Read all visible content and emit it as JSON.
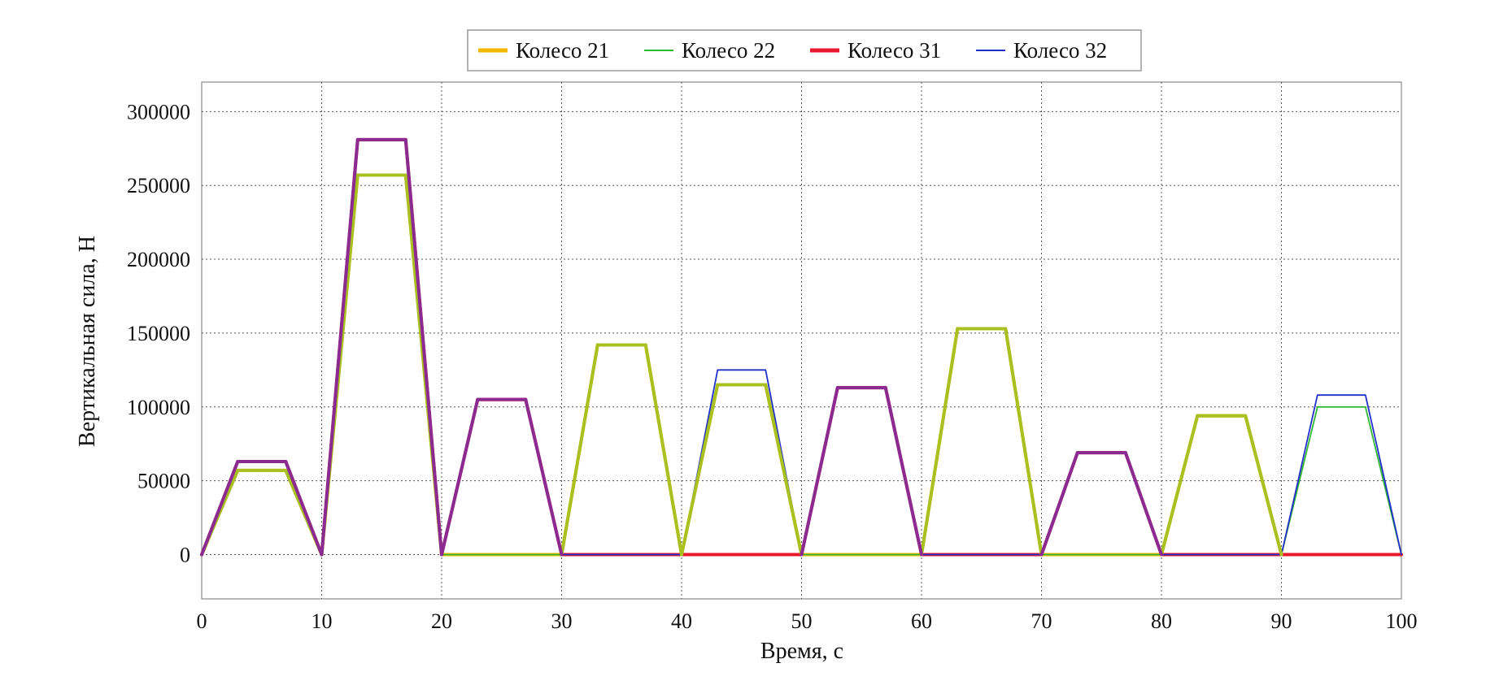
{
  "chart_data": {
    "type": "line",
    "title": "",
    "xlabel": "Время, с",
    "ylabel": "Вертикальная сила, Н",
    "xlim": [
      0,
      100
    ],
    "ylim": [
      -30000,
      320000
    ],
    "x_ticks": [
      "0",
      "10",
      "20",
      "30",
      "40",
      "50",
      "60",
      "70",
      "80",
      "90",
      "100"
    ],
    "y_ticks": [
      "0",
      "50000",
      "100000",
      "150000",
      "200000",
      "250000",
      "300000"
    ],
    "grid": true,
    "legend_position": "top-center",
    "series": [
      {
        "name": "Колесо 21",
        "color": "#F5B800",
        "line_width": "thick",
        "points": [
          [
            0,
            0
          ],
          [
            3,
            57000
          ],
          [
            7,
            57000
          ],
          [
            10,
            0
          ],
          [
            13,
            257000
          ],
          [
            17,
            257000
          ],
          [
            20,
            0
          ],
          [
            30,
            0
          ],
          [
            33,
            142000
          ],
          [
            37,
            142000
          ],
          [
            40,
            0
          ],
          [
            43,
            115000
          ],
          [
            47,
            115000
          ],
          [
            50,
            0
          ],
          [
            60,
            0
          ],
          [
            63,
            153000
          ],
          [
            67,
            153000
          ],
          [
            70,
            0
          ],
          [
            80,
            0
          ],
          [
            83,
            94000
          ],
          [
            87,
            94000
          ],
          [
            90,
            0
          ],
          [
            100,
            0
          ]
        ]
      },
      {
        "name": "Колесо 22",
        "color": "#33B833",
        "line_width": "thin",
        "points": [
          [
            0,
            0
          ],
          [
            3,
            57000
          ],
          [
            7,
            57000
          ],
          [
            10,
            0
          ],
          [
            13,
            257000
          ],
          [
            17,
            257000
          ],
          [
            20,
            0
          ],
          [
            30,
            0
          ],
          [
            33,
            142000
          ],
          [
            37,
            142000
          ],
          [
            40,
            0
          ],
          [
            43,
            115000
          ],
          [
            47,
            115000
          ],
          [
            50,
            0
          ],
          [
            60,
            0
          ],
          [
            63,
            153000
          ],
          [
            67,
            153000
          ],
          [
            70,
            0
          ],
          [
            80,
            0
          ],
          [
            83,
            94000
          ],
          [
            87,
            94000
          ],
          [
            90,
            0
          ],
          [
            93,
            100000
          ],
          [
            97,
            100000
          ],
          [
            100,
            0
          ]
        ]
      },
      {
        "name": "Колесо 31",
        "color": "#E8192C",
        "line_width": "thick",
        "points": [
          [
            0,
            0
          ],
          [
            3,
            63000
          ],
          [
            7,
            63000
          ],
          [
            10,
            0
          ],
          [
            13,
            281000
          ],
          [
            17,
            281000
          ],
          [
            20,
            0
          ],
          [
            23,
            105000
          ],
          [
            27,
            105000
          ],
          [
            30,
            0
          ],
          [
            40,
            0
          ],
          [
            50,
            0
          ],
          [
            53,
            113000
          ],
          [
            57,
            113000
          ],
          [
            60,
            0
          ],
          [
            70,
            0
          ],
          [
            73,
            69000
          ],
          [
            77,
            69000
          ],
          [
            80,
            0
          ],
          [
            90,
            0
          ],
          [
            100,
            0
          ]
        ]
      },
      {
        "name": "Колесо 32",
        "color": "#2030C8",
        "line_width": "thin",
        "points": [
          [
            0,
            0
          ],
          [
            3,
            63000
          ],
          [
            7,
            63000
          ],
          [
            10,
            0
          ],
          [
            13,
            281000
          ],
          [
            17,
            281000
          ],
          [
            20,
            0
          ],
          [
            23,
            105000
          ],
          [
            27,
            105000
          ],
          [
            30,
            0
          ],
          [
            40,
            0
          ],
          [
            43,
            125000
          ],
          [
            47,
            125000
          ],
          [
            50,
            0
          ],
          [
            53,
            113000
          ],
          [
            57,
            113000
          ],
          [
            60,
            0
          ],
          [
            70,
            0
          ],
          [
            73,
            69000
          ],
          [
            77,
            69000
          ],
          [
            80,
            0
          ],
          [
            90,
            0
          ],
          [
            93,
            108000
          ],
          [
            97,
            108000
          ],
          [
            100,
            0
          ]
        ]
      }
    ]
  }
}
